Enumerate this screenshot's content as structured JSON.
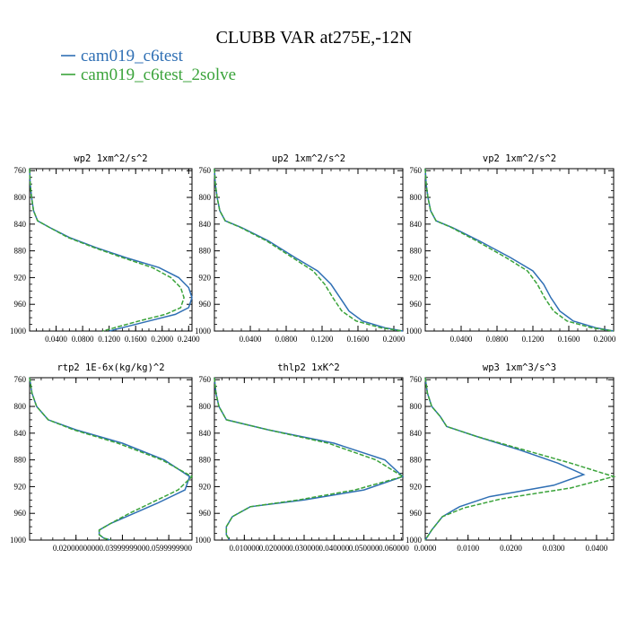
{
  "title": "CLUBB VAR at275E,-12N",
  "legend": [
    {
      "label": "cam019_c6test",
      "color": "#2f6fb4",
      "dash": "solid"
    },
    {
      "label": "cam019_c6test_2solve",
      "color": "#3aa33a",
      "dash": "dashed"
    }
  ],
  "chart_data": [
    {
      "type": "line",
      "title": "wp2  1xm^2/s^2",
      "xlim": [
        0,
        0.245
      ],
      "ylim": [
        757,
        1000
      ],
      "yticks": [
        760,
        800,
        840,
        880,
        920,
        960,
        1000
      ],
      "xticks": [
        0.04,
        0.08,
        0.12,
        0.16,
        0.2,
        0.24
      ],
      "xtick_labels": [
        "0.0400",
        "0.0800",
        "0.1200",
        "0.1600",
        "0.2000",
        "0.2400"
      ],
      "series": [
        {
          "name": "cam019_c6test",
          "x": [
            0,
            0.001,
            0.003,
            0.006,
            0.012,
            0.03,
            0.06,
            0.1,
            0.145,
            0.195,
            0.225,
            0.24,
            0.245,
            0.24,
            0.22,
            0.18,
            0.12
          ],
          "y": [
            757,
            780,
            800,
            820,
            835,
            845,
            860,
            875,
            890,
            905,
            920,
            935,
            950,
            965,
            975,
            985,
            1000
          ]
        },
        {
          "name": "cam019_c6test_2solve",
          "x": [
            0,
            0.001,
            0.003,
            0.006,
            0.012,
            0.03,
            0.058,
            0.097,
            0.14,
            0.185,
            0.213,
            0.228,
            0.233,
            0.228,
            0.205,
            0.165,
            0.11
          ],
          "y": [
            757,
            780,
            800,
            820,
            835,
            845,
            860,
            875,
            890,
            905,
            920,
            935,
            950,
            965,
            975,
            985,
            1000
          ]
        }
      ]
    },
    {
      "type": "line",
      "title": "up2  1xm^2/s^2",
      "xlim": [
        0,
        0.21
      ],
      "ylim": [
        757,
        1000
      ],
      "yticks": [
        760,
        800,
        840,
        880,
        920,
        960,
        1000
      ],
      "xticks": [
        0.04,
        0.08,
        0.12,
        0.16,
        0.2
      ],
      "xtick_labels": [
        "0.0400",
        "0.0800",
        "0.1200",
        "0.1600",
        "0.2000"
      ],
      "series": [
        {
          "name": "cam019_c6test",
          "x": [
            0,
            0.001,
            0.003,
            0.006,
            0.012,
            0.03,
            0.06,
            0.09,
            0.115,
            0.13,
            0.14,
            0.15,
            0.165,
            0.19,
            0.21
          ],
          "y": [
            757,
            780,
            800,
            820,
            835,
            845,
            865,
            890,
            910,
            930,
            950,
            970,
            985,
            995,
            1000
          ]
        },
        {
          "name": "cam019_c6test_2solve",
          "x": [
            0,
            0.001,
            0.003,
            0.006,
            0.012,
            0.029,
            0.058,
            0.087,
            0.11,
            0.123,
            0.132,
            0.142,
            0.158,
            0.185,
            0.21
          ],
          "y": [
            757,
            780,
            800,
            820,
            835,
            845,
            865,
            890,
            910,
            930,
            950,
            970,
            985,
            995,
            1000
          ]
        }
      ]
    },
    {
      "type": "line",
      "title": "vp2  1xm^2/s^2",
      "xlim": [
        0,
        0.21
      ],
      "ylim": [
        757,
        1000
      ],
      "yticks": [
        760,
        800,
        840,
        880,
        920,
        960,
        1000
      ],
      "xticks": [
        0.04,
        0.08,
        0.12,
        0.16,
        0.2
      ],
      "xtick_labels": [
        "0.0400",
        "0.0800",
        "0.1200",
        "0.1600",
        "0.2000"
      ],
      "series": [
        {
          "name": "cam019_c6test",
          "x": [
            0,
            0.001,
            0.003,
            0.006,
            0.012,
            0.03,
            0.06,
            0.095,
            0.12,
            0.132,
            0.14,
            0.15,
            0.165,
            0.19,
            0.21
          ],
          "y": [
            757,
            780,
            800,
            820,
            835,
            845,
            865,
            890,
            910,
            930,
            950,
            970,
            985,
            995,
            1000
          ]
        },
        {
          "name": "cam019_c6test_2solve",
          "x": [
            0,
            0.001,
            0.003,
            0.006,
            0.012,
            0.029,
            0.057,
            0.09,
            0.114,
            0.125,
            0.133,
            0.143,
            0.158,
            0.185,
            0.21
          ],
          "y": [
            757,
            780,
            800,
            820,
            835,
            845,
            865,
            890,
            910,
            930,
            950,
            970,
            985,
            995,
            1000
          ]
        }
      ]
    },
    {
      "type": "line",
      "title": "rtp2  1E-6x(kg/kg)^2",
      "xlim": [
        0,
        0.07
      ],
      "ylim": [
        757,
        1000
      ],
      "yticks": [
        760,
        800,
        840,
        880,
        920,
        960,
        1000
      ],
      "xticks": [
        0.02,
        0.04,
        0.06
      ],
      "xtick_labels": [
        "0.0200000000",
        "0.0399999900",
        "0.0599999900"
      ],
      "series": [
        {
          "name": "cam019_c6test",
          "x": [
            0,
            0.001,
            0.003,
            0.008,
            0.02,
            0.04,
            0.058,
            0.069,
            0.067,
            0.055,
            0.045,
            0.035,
            0.03,
            0.03,
            0.032,
            0.035
          ],
          "y": [
            757,
            780,
            800,
            820,
            835,
            855,
            880,
            905,
            925,
            945,
            960,
            975,
            985,
            992,
            997,
            1000
          ]
        },
        {
          "name": "cam019_c6test_2solve",
          "x": [
            0,
            0.001,
            0.003,
            0.008,
            0.019,
            0.038,
            0.057,
            0.07,
            0.064,
            0.052,
            0.043,
            0.035,
            0.03,
            0.03,
            0.032,
            0.035
          ],
          "y": [
            757,
            780,
            800,
            820,
            835,
            855,
            880,
            905,
            925,
            945,
            960,
            975,
            985,
            992,
            997,
            1000
          ]
        }
      ]
    },
    {
      "type": "line",
      "title": "thlp2  1xK^2",
      "xlim": [
        0,
        0.063
      ],
      "ylim": [
        757,
        1000
      ],
      "yticks": [
        760,
        800,
        840,
        880,
        920,
        960,
        1000
      ],
      "xticks": [
        0.01,
        0.02,
        0.03,
        0.04,
        0.05,
        0.06
      ],
      "xtick_labels": [
        "0.010000",
        "0.020000",
        "0.030000",
        "0.040000",
        "0.050000",
        "0.060000"
      ],
      "series": [
        {
          "name": "cam019_c6test",
          "x": [
            0,
            0.0005,
            0.0015,
            0.004,
            0.018,
            0.04,
            0.057,
            0.063,
            0.05,
            0.03,
            0.012,
            0.006,
            0.004,
            0.004,
            0.005
          ],
          "y": [
            757,
            780,
            800,
            820,
            835,
            855,
            880,
            905,
            925,
            940,
            950,
            965,
            980,
            992,
            1000
          ]
        },
        {
          "name": "cam019_c6test_2solve",
          "x": [
            0,
            0.0005,
            0.0015,
            0.004,
            0.018,
            0.038,
            0.054,
            0.063,
            0.047,
            0.028,
            0.012,
            0.006,
            0.004,
            0.004,
            0.005
          ],
          "y": [
            757,
            780,
            800,
            820,
            835,
            855,
            880,
            905,
            925,
            940,
            950,
            965,
            980,
            992,
            1000
          ]
        }
      ]
    },
    {
      "type": "line",
      "title": "wp3  1xm^3/s^3",
      "xlim": [
        0,
        0.044
      ],
      "ylim": [
        757,
        1000
      ],
      "yticks": [
        760,
        800,
        840,
        880,
        920,
        960,
        1000
      ],
      "xticks": [
        0,
        0.01,
        0.02,
        0.03,
        0.04
      ],
      "xtick_labels": [
        "0.0000",
        "0.0100",
        "0.0200",
        "0.0300",
        "0.0400"
      ],
      "series": [
        {
          "name": "cam019_c6test",
          "x": [
            0,
            0.0005,
            0.0015,
            0.0035,
            0.005,
            0.012,
            0.022,
            0.031,
            0.037,
            0.03,
            0.015,
            0.008,
            0.004,
            0.0015,
            0
          ],
          "y": [
            757,
            780,
            800,
            815,
            830,
            845,
            865,
            885,
            902,
            918,
            935,
            950,
            965,
            985,
            1000
          ]
        },
        {
          "name": "cam019_c6test_2solve",
          "x": [
            0,
            0.0005,
            0.0015,
            0.0035,
            0.005,
            0.012,
            0.023,
            0.034,
            0.044,
            0.034,
            0.018,
            0.009,
            0.004,
            0.0015,
            0
          ],
          "y": [
            757,
            780,
            800,
            815,
            830,
            845,
            865,
            885,
            905,
            922,
            938,
            952,
            965,
            985,
            1000
          ]
        }
      ]
    }
  ]
}
